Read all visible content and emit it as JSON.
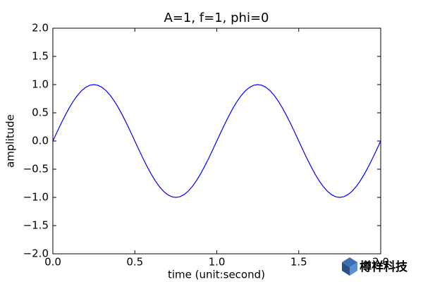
{
  "chart_data": {
    "type": "line",
    "title": "A=1, f=1, phi=0",
    "x_label": "time (unit:second)",
    "y_label": "amplitude",
    "x": [
      0,
      0.025,
      0.05,
      0.075,
      0.1,
      0.125,
      0.15,
      0.175,
      0.2,
      0.225,
      0.25,
      0.275,
      0.3,
      0.325,
      0.35,
      0.375,
      0.4,
      0.425,
      0.45,
      0.475,
      0.5,
      0.525,
      0.55,
      0.575,
      0.6,
      0.625,
      0.65,
      0.675,
      0.7,
      0.725,
      0.75,
      0.775,
      0.8,
      0.825,
      0.85,
      0.875,
      0.9,
      0.925,
      0.95,
      0.975,
      1,
      1.025,
      1.05,
      1.075,
      1.1,
      1.125,
      1.15,
      1.175,
      1.2,
      1.225,
      1.25,
      1.275,
      1.3,
      1.325,
      1.35,
      1.375,
      1.4,
      1.425,
      1.45,
      1.475,
      1.5,
      1.525,
      1.55,
      1.575,
      1.6,
      1.625,
      1.65,
      1.675,
      1.7,
      1.725,
      1.75,
      1.775,
      1.8,
      1.825,
      1.85,
      1.875,
      1.9,
      1.925,
      1.95,
      1.975,
      2
    ],
    "series": [
      {
        "color": "#0000ff",
        "values": [
          0,
          0.156,
          0.309,
          0.454,
          0.588,
          0.707,
          0.809,
          0.891,
          0.951,
          0.988,
          1,
          0.988,
          0.951,
          0.891,
          0.809,
          0.707,
          0.588,
          0.454,
          0.309,
          0.156,
          0,
          -0.156,
          -0.309,
          -0.454,
          -0.588,
          -0.707,
          -0.809,
          -0.891,
          -0.951,
          -0.988,
          -1,
          -0.988,
          -0.951,
          -0.891,
          -0.809,
          -0.707,
          -0.588,
          -0.454,
          -0.309,
          -0.156,
          0,
          0.156,
          0.309,
          0.454,
          0.588,
          0.707,
          0.809,
          0.891,
          0.951,
          0.988,
          1,
          0.988,
          0.951,
          0.891,
          0.809,
          0.707,
          0.588,
          0.454,
          0.309,
          0.156,
          0,
          -0.156,
          -0.309,
          -0.454,
          -0.588,
          -0.707,
          -0.809,
          -0.891,
          -0.951,
          -0.988,
          -1,
          -0.988,
          -0.951,
          -0.891,
          -0.809,
          -0.707,
          -0.588,
          -0.454,
          -0.309,
          -0.156,
          0
        ]
      }
    ],
    "xlim": [
      0,
      2
    ],
    "ylim": [
      -2,
      2
    ],
    "xticks": [
      {
        "value": 0,
        "label": "0.0"
      },
      {
        "value": 0.5,
        "label": "0.5"
      },
      {
        "value": 1,
        "label": "1.0"
      },
      {
        "value": 1.5,
        "label": "1.5"
      },
      {
        "value": 2,
        "label": "2.0"
      }
    ],
    "yticks": [
      {
        "value": -2,
        "label": "−2.0"
      },
      {
        "value": -1.5,
        "label": "−1.5"
      },
      {
        "value": -1,
        "label": "−1.0"
      },
      {
        "value": -0.5,
        "label": "−0.5"
      },
      {
        "value": 0,
        "label": "0.0"
      },
      {
        "value": 0.5,
        "label": "0.5"
      },
      {
        "value": 1,
        "label": "1.0"
      },
      {
        "value": 1.5,
        "label": "1.5"
      },
      {
        "value": 2,
        "label": "2.0"
      }
    ],
    "grid": false
  },
  "watermark": "樽祥科技"
}
